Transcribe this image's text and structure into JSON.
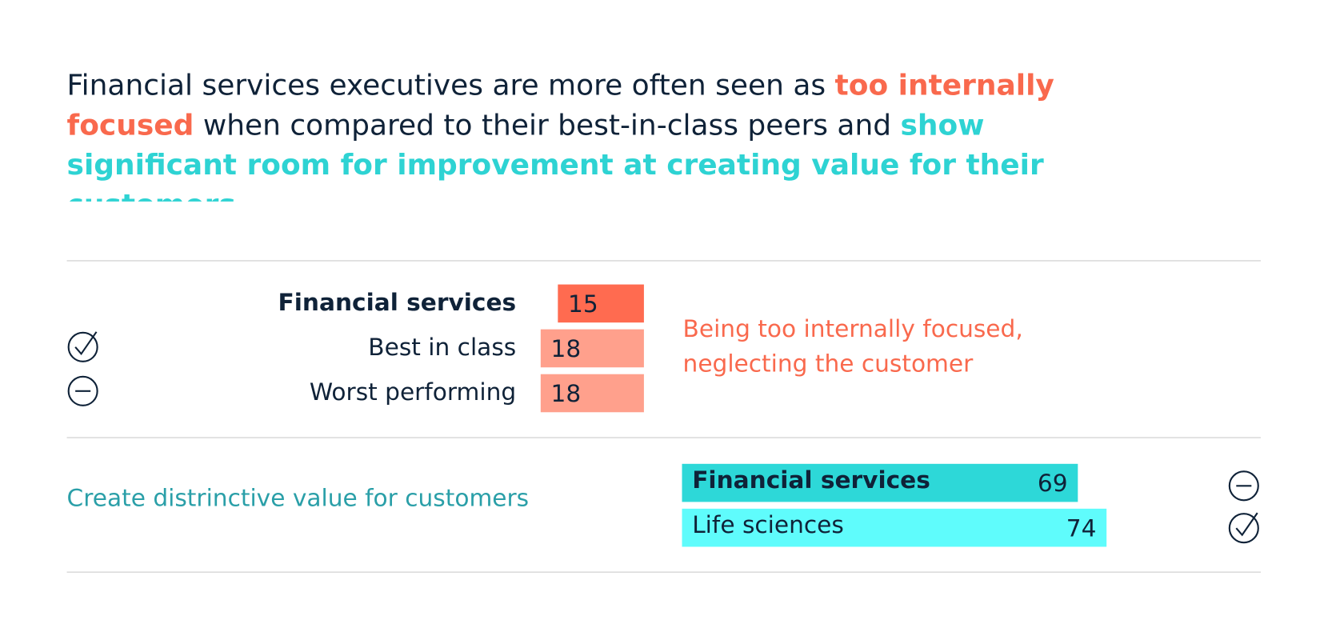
{
  "headline": {
    "segments": [
      "Financial services executives are more often seen as",
      "too internally focused",
      "when compared to their best-in-class peers and",
      "show significant room for improvement at creating value for their customers",
      "."
    ]
  },
  "chart_data": [
    {
      "type": "bar",
      "orientation": "left",
      "categories": [
        "Financial services",
        "Best in class",
        "Worst performing"
      ],
      "values": [
        15,
        18,
        18
      ],
      "colors": [
        "#ff6b50",
        "#ffa08c",
        "#ffa08c"
      ],
      "annotation": [
        "Being too internally focused,",
        "neglecting the customer"
      ]
    },
    {
      "type": "bar",
      "orientation": "right",
      "title": "Create distrinctive value for customers",
      "categories": [
        "Financial services",
        "Life sciences"
      ],
      "values": [
        69,
        74
      ],
      "colors": [
        "#2dd8d8",
        "#5ffcfc"
      ]
    }
  ]
}
